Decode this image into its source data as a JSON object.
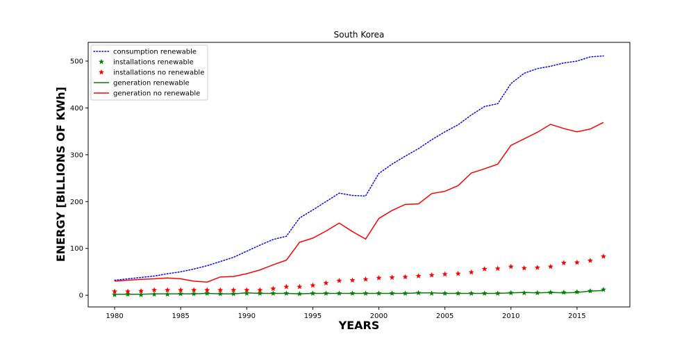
{
  "chart_data": {
    "type": "line",
    "title": "South Korea",
    "xlabel": "YEARS",
    "ylabel": "ENERGY [BILLIONS OF KWh]",
    "xlim": [
      1978,
      2019
    ],
    "ylim": [
      -25,
      540
    ],
    "x_ticks": [
      1980,
      1985,
      1990,
      1995,
      2000,
      2005,
      2010,
      2015
    ],
    "y_ticks": [
      0,
      100,
      200,
      300,
      400,
      500
    ],
    "grid": false,
    "legend_position": "top-left",
    "x": [
      1980,
      1981,
      1982,
      1983,
      1984,
      1985,
      1986,
      1987,
      1988,
      1989,
      1990,
      1991,
      1992,
      1993,
      1994,
      1995,
      1996,
      1997,
      1998,
      1999,
      2000,
      2001,
      2002,
      2003,
      2004,
      2005,
      2006,
      2007,
      2008,
      2009,
      2010,
      2011,
      2012,
      2013,
      2014,
      2015,
      2016,
      2017
    ],
    "series": [
      {
        "name": "consumption renewable",
        "style": "dotted-line",
        "color": "#0000ff",
        "values": [
          32,
          35,
          38,
          41,
          46,
          50,
          56,
          63,
          72,
          81,
          94,
          107,
          119,
          126,
          165,
          182,
          200,
          218,
          213,
          212,
          260,
          280,
          297,
          313,
          332,
          349,
          364,
          385,
          403,
          409,
          452,
          474,
          484,
          489,
          496,
          500,
          509,
          511
        ]
      },
      {
        "name": "installations renewable",
        "style": "star-marker",
        "color": "#008000",
        "values": [
          1,
          2,
          1,
          2,
          2,
          3,
          3,
          4,
          3,
          3,
          4,
          4,
          4,
          4,
          3,
          4,
          4,
          4,
          4,
          4,
          4,
          4,
          4,
          5,
          4,
          4,
          4,
          4,
          4,
          4,
          5,
          5,
          5,
          6,
          6,
          7,
          9,
          12
        ]
      },
      {
        "name": "installations no renewable",
        "style": "star-marker",
        "color": "#ff0000",
        "values": [
          8,
          8,
          9,
          11,
          11,
          11,
          11,
          11,
          11,
          11,
          11,
          11,
          14,
          18,
          18,
          21,
          26,
          31,
          32,
          34,
          37,
          38,
          39,
          41,
          43,
          45,
          46,
          49,
          56,
          57,
          61,
          58,
          59,
          61,
          69,
          70,
          74,
          83
        ]
      },
      {
        "name": "generation renewable",
        "style": "solid-line",
        "color": "#008000",
        "values": [
          2,
          2,
          2,
          3,
          3,
          3,
          3,
          4,
          3,
          3,
          5,
          4,
          4,
          4,
          3,
          4,
          4,
          4,
          4,
          4,
          4,
          4,
          4,
          5,
          5,
          4,
          4,
          4,
          4,
          4,
          5,
          6,
          5,
          6,
          5,
          6,
          9,
          10
        ]
      },
      {
        "name": "generation no renewable",
        "style": "solid-line",
        "color": "#ff0000",
        "values": [
          30,
          32,
          34,
          35,
          37,
          35,
          30,
          28,
          39,
          40,
          46,
          54,
          65,
          75,
          113,
          122,
          137,
          154,
          136,
          120,
          164,
          181,
          194,
          195,
          217,
          222,
          234,
          261,
          270,
          280,
          320,
          334,
          348,
          365,
          356,
          349,
          355,
          369
        ]
      }
    ]
  }
}
